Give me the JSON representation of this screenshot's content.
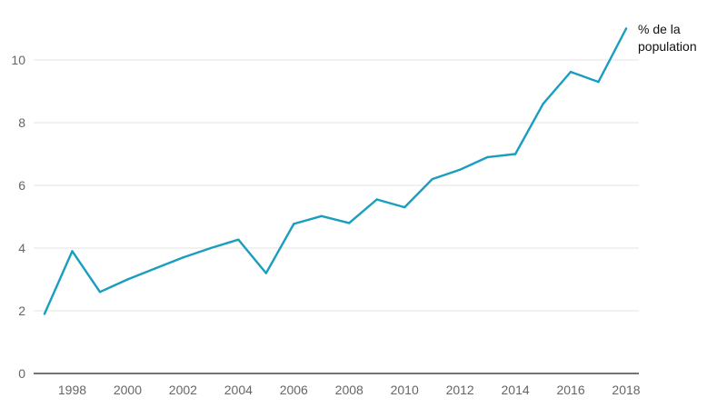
{
  "chart_data": {
    "type": "line",
    "x": [
      1997,
      1998,
      1999,
      2000,
      2001,
      2002,
      2003,
      2004,
      2005,
      2006,
      2007,
      2008,
      2009,
      2010,
      2011,
      2012,
      2013,
      2014,
      2015,
      2016,
      2017,
      2018
    ],
    "series": [
      {
        "name": "% de la population",
        "values": [
          1.9,
          3.9,
          2.6,
          3.0,
          3.35,
          3.7,
          4.0,
          4.27,
          3.2,
          4.77,
          5.02,
          4.8,
          5.55,
          5.3,
          6.2,
          6.5,
          6.9,
          7.0,
          8.6,
          9.62,
          9.3,
          11.0
        ],
        "color": "#1a9ec0"
      }
    ],
    "series_label": [
      "% de la",
      "population"
    ],
    "xticks": [
      "1998",
      "2000",
      "2002",
      "2004",
      "2006",
      "2008",
      "2010",
      "2012",
      "2014",
      "2016",
      "2018"
    ],
    "yticks": [
      "0",
      "2",
      "4",
      "6",
      "8",
      "10"
    ],
    "xlim": [
      1997,
      2018
    ],
    "ylim": [
      0,
      11
    ],
    "grid": true,
    "title": "",
    "xlabel": "",
    "ylabel": ""
  }
}
